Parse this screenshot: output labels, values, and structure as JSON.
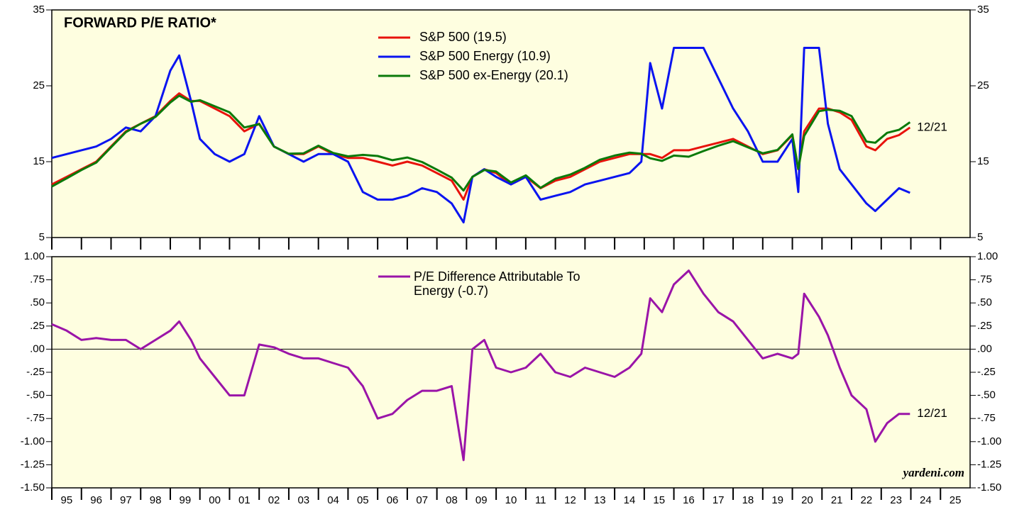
{
  "chart_data": [
    {
      "type": "line",
      "title": "FORWARD P/E RATIO*",
      "end_label": "12/21",
      "x": [
        1995.0,
        1995.5,
        1996.0,
        1996.5,
        1997.0,
        1997.5,
        1998.0,
        1998.5,
        1999.0,
        1999.3,
        1999.7,
        2000.0,
        2000.5,
        2001.0,
        2001.5,
        2002.0,
        2002.5,
        2003.0,
        2003.5,
        2004.0,
        2004.5,
        2005.0,
        2005.5,
        2006.0,
        2006.5,
        2007.0,
        2007.5,
        2008.0,
        2008.5,
        2008.9,
        2009.2,
        2009.6,
        2010.0,
        2010.5,
        2011.0,
        2011.5,
        2012.0,
        2012.5,
        2013.0,
        2013.5,
        2014.0,
        2014.5,
        2014.9,
        2015.2,
        2015.6,
        2016.0,
        2016.5,
        2017.0,
        2017.5,
        2018.0,
        2018.5,
        2019.0,
        2019.5,
        2020.0,
        2020.2,
        2020.4,
        2020.9,
        2021.2,
        2021.6,
        2022.0,
        2022.5,
        2022.8,
        2023.2,
        2023.6,
        2023.97
      ],
      "series": [
        {
          "name": "S&P 500 (19.5)",
          "color": "#e8120c",
          "values": [
            12,
            13,
            14,
            15,
            17,
            19,
            20,
            21,
            23,
            24,
            23,
            23,
            22,
            21,
            19,
            20,
            17,
            16,
            16,
            17,
            16,
            15.5,
            15.5,
            15,
            14.5,
            15,
            14.5,
            13.5,
            12.5,
            10,
            13,
            14,
            13.5,
            12,
            13,
            11.5,
            12.5,
            13,
            14,
            15,
            15.5,
            16,
            16,
            16,
            15.5,
            16.5,
            16.5,
            17,
            17.5,
            18,
            17,
            16,
            16.5,
            18.5,
            14,
            19,
            22,
            22,
            21.5,
            20.5,
            17,
            16.5,
            18,
            18.5,
            19.5
          ]
        },
        {
          "name": "S&P 500 Energy (10.9)",
          "color": "#0a14f0",
          "values": [
            15.5,
            16,
            16.5,
            17,
            18,
            19.5,
            19,
            21,
            27,
            29,
            23,
            18,
            16,
            15,
            16,
            21,
            17,
            16,
            15,
            16,
            16,
            15,
            11,
            10,
            10,
            10.5,
            11.5,
            11,
            9.5,
            7,
            13,
            14,
            13,
            12,
            13,
            10,
            10.5,
            11,
            12,
            12.5,
            13,
            13.5,
            15,
            28,
            22,
            30,
            30,
            30,
            26,
            22,
            19,
            15,
            15,
            18,
            11,
            30,
            30,
            20,
            14,
            12,
            9.5,
            8.5,
            10,
            11.5,
            10.9
          ]
        },
        {
          "name": "S&P 500 ex-Energy (20.1)",
          "color": "#0a7a0a",
          "values": [
            11.73,
            12.8,
            13.9,
            14.88,
            16.9,
            18.9,
            20,
            20.9,
            22.8,
            23.7,
            22.9,
            23.1,
            22.3,
            21.5,
            19.5,
            19.95,
            16.98,
            16.05,
            16.1,
            17.1,
            16.15,
            15.7,
            15.9,
            15.75,
            15.2,
            15.55,
            14.95,
            13.95,
            12.9,
            11.2,
            13,
            13.9,
            13.7,
            12.25,
            13.2,
            11.55,
            12.75,
            13.3,
            14.2,
            15.25,
            15.8,
            16.2,
            16.05,
            15.45,
            15.1,
            15.8,
            15.65,
            16.4,
            17.1,
            17.7,
            16.9,
            16.1,
            16.55,
            18.6,
            14.05,
            18.4,
            21.65,
            21.85,
            21.7,
            21,
            17.65,
            17.5,
            18.8,
            19.2,
            20.2
          ]
        }
      ],
      "ylim": [
        5,
        35
      ],
      "yticks": [
        5,
        15,
        25,
        35
      ]
    },
    {
      "type": "line",
      "end_label": "12/21",
      "source": "yardeni.com",
      "zero_line": true,
      "x": [
        1995.0,
        1995.5,
        1996.0,
        1996.5,
        1997.0,
        1997.5,
        1998.0,
        1998.5,
        1999.0,
        1999.3,
        1999.7,
        2000.0,
        2000.5,
        2001.0,
        2001.5,
        2002.0,
        2002.5,
        2003.0,
        2003.5,
        2004.0,
        2004.5,
        2005.0,
        2005.5,
        2006.0,
        2006.5,
        2007.0,
        2007.5,
        2008.0,
        2008.5,
        2008.9,
        2009.2,
        2009.6,
        2010.0,
        2010.5,
        2011.0,
        2011.5,
        2012.0,
        2012.5,
        2013.0,
        2013.5,
        2014.0,
        2014.5,
        2014.9,
        2015.2,
        2015.6,
        2016.0,
        2016.5,
        2017.0,
        2017.5,
        2018.0,
        2018.5,
        2019.0,
        2019.5,
        2020.0,
        2020.2,
        2020.4,
        2020.9,
        2021.2,
        2021.6,
        2022.0,
        2022.5,
        2022.8,
        2023.2,
        2023.6,
        2023.97
      ],
      "series": [
        {
          "name": "P/E Difference Attributable To Energy (-0.7)",
          "color": "#9a14a8",
          "values": [
            0.27,
            0.2,
            0.1,
            0.12,
            0.1,
            0.1,
            0.0,
            0.1,
            0.2,
            0.3,
            0.1,
            -0.1,
            -0.3,
            -0.5,
            -0.5,
            0.05,
            0.02,
            -0.05,
            -0.1,
            -0.1,
            -0.15,
            -0.2,
            -0.4,
            -0.75,
            -0.7,
            -0.55,
            -0.45,
            -0.45,
            -0.4,
            -1.2,
            0.0,
            0.1,
            -0.2,
            -0.25,
            -0.2,
            -0.05,
            -0.25,
            -0.3,
            -0.2,
            -0.25,
            -0.3,
            -0.2,
            -0.05,
            0.55,
            0.4,
            0.7,
            0.85,
            0.6,
            0.4,
            0.3,
            0.1,
            -0.1,
            -0.05,
            -0.1,
            -0.05,
            0.6,
            0.35,
            0.15,
            -0.2,
            -0.5,
            -0.65,
            -1.0,
            -0.8,
            -0.7,
            -0.7
          ]
        }
      ],
      "ylim": [
        -1.5,
        1.0
      ],
      "yticks": [
        {
          "value": 1.0,
          "label": "1.00"
        },
        {
          "value": 0.75,
          "label": ".75"
        },
        {
          "value": 0.5,
          "label": ".50"
        },
        {
          "value": 0.25,
          "label": ".25"
        },
        {
          "value": 0,
          "label": ".00"
        },
        {
          "value": -0.25,
          "label": "-.25"
        },
        {
          "value": -0.5,
          "label": "-.50"
        },
        {
          "value": -0.75,
          "label": "-.75"
        },
        {
          "value": -1.0,
          "label": "-1.00"
        },
        {
          "value": -1.25,
          "label": "-1.25"
        },
        {
          "value": -1.5,
          "label": "-1.50"
        }
      ],
      "xlim": [
        1995,
        2026
      ],
      "xticks": [
        {
          "value": 1995,
          "label": "95"
        },
        {
          "value": 1996,
          "label": "96"
        },
        {
          "value": 1997,
          "label": "97"
        },
        {
          "value": 1998,
          "label": "98"
        },
        {
          "value": 1999,
          "label": "99"
        },
        {
          "value": 2000,
          "label": "00"
        },
        {
          "value": 2001,
          "label": "01"
        },
        {
          "value": 2002,
          "label": "02"
        },
        {
          "value": 2003,
          "label": "03"
        },
        {
          "value": 2004,
          "label": "04"
        },
        {
          "value": 2005,
          "label": "05"
        },
        {
          "value": 2006,
          "label": "06"
        },
        {
          "value": 2007,
          "label": "07"
        },
        {
          "value": 2008,
          "label": "08"
        },
        {
          "value": 2009,
          "label": "09"
        },
        {
          "value": 2010,
          "label": "10"
        },
        {
          "value": 2011,
          "label": "11"
        },
        {
          "value": 2012,
          "label": "12"
        },
        {
          "value": 2013,
          "label": "13"
        },
        {
          "value": 2014,
          "label": "14"
        },
        {
          "value": 2015,
          "label": "15"
        },
        {
          "value": 2016,
          "label": "16"
        },
        {
          "value": 2017,
          "label": "17"
        },
        {
          "value": 2018,
          "label": "18"
        },
        {
          "value": 2019,
          "label": "19"
        },
        {
          "value": 2020,
          "label": "20"
        },
        {
          "value": 2021,
          "label": "21"
        },
        {
          "value": 2022,
          "label": "22"
        },
        {
          "value": 2023,
          "label": "23"
        },
        {
          "value": 2024,
          "label": "24"
        },
        {
          "value": 2025,
          "label": "25"
        }
      ]
    }
  ]
}
